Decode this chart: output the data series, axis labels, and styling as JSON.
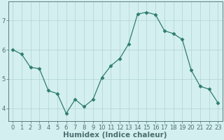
{
  "x": [
    0,
    1,
    2,
    3,
    4,
    5,
    6,
    7,
    8,
    9,
    10,
    11,
    12,
    13,
    14,
    15,
    16,
    17,
    18,
    19,
    20,
    21,
    22,
    23
  ],
  "y": [
    6.0,
    5.85,
    5.4,
    5.35,
    4.6,
    4.5,
    3.82,
    4.3,
    4.05,
    4.3,
    5.05,
    5.45,
    5.7,
    6.2,
    7.22,
    7.28,
    7.2,
    6.65,
    6.55,
    6.35,
    5.3,
    4.75,
    4.65,
    4.18
  ],
  "line_color": "#2e7d6e",
  "marker": "D",
  "marker_size": 2.5,
  "bg_color": "#d4efef",
  "grid_color": "#b5d8d8",
  "axis_color": "#4a6e6e",
  "xlabel": "Humidex (Indice chaleur)",
  "xlabel_fontsize": 7.5,
  "tick_fontsize": 6,
  "xlim": [
    -0.5,
    23.5
  ],
  "ylim": [
    3.55,
    7.65
  ],
  "yticks": [
    4,
    5,
    6,
    7
  ],
  "xticks": [
    0,
    1,
    2,
    3,
    4,
    5,
    6,
    7,
    8,
    9,
    10,
    11,
    12,
    13,
    14,
    15,
    16,
    17,
    18,
    19,
    20,
    21,
    22,
    23
  ]
}
